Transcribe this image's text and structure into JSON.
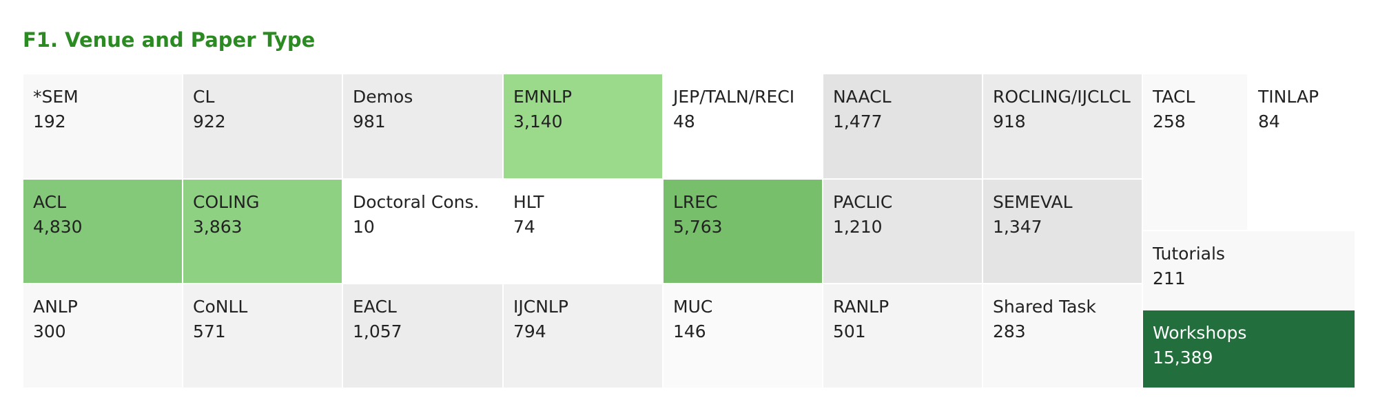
{
  "chart_data": {
    "type": "treemap",
    "title": "F1. Venue and Paper Type",
    "categories": [
      "*SEM",
      "CL",
      "Demos",
      "EMNLP",
      "JEP/TALN/RECI",
      "NAACL",
      "ROCLING/IJCLCL",
      "TACL",
      "TINLAP",
      "ACL",
      "COLING",
      "Doctoral Cons.",
      "HLT",
      "LREC",
      "PACLIC",
      "SEMEVAL",
      "Tutorials",
      "ANLP",
      "CoNLL",
      "EACL",
      "IJCNLP",
      "MUC",
      "RANLP",
      "Shared Task",
      "Workshops"
    ],
    "values": [
      192,
      922,
      981,
      3140,
      48,
      1477,
      918,
      258,
      84,
      4830,
      3863,
      10,
      74,
      5763,
      1210,
      1347,
      211,
      300,
      571,
      1057,
      794,
      146,
      501,
      283,
      15389
    ],
    "value_labels": [
      "192",
      "922",
      "981",
      "3,140",
      "48",
      "1,477",
      "918",
      "258",
      "84",
      "4,830",
      "3,863",
      "10",
      "74",
      "5,763",
      "1,210",
      "1,347",
      "211",
      "300",
      "571",
      "1,057",
      "794",
      "146",
      "501",
      "283",
      "15,389"
    ],
    "colors": [
      "#f8f8f8",
      "#ececec",
      "#ececec",
      "#9bd98b",
      "#ffffff",
      "#e3e3e3",
      "#ebebeb",
      "#f9f9f9",
      "#ffffff",
      "#84c87a",
      "#8fd183",
      "#ffffff",
      "#ffffff",
      "#78bf6c",
      "#e6e6e6",
      "#e4e4e4",
      "#f8f8f8",
      "#f8f8f8",
      "#f2f2f2",
      "#ececec",
      "#f0f0f0",
      "#fafafa",
      "#f4f4f4",
      "#f8f8f8",
      "#226e3c"
    ]
  }
}
